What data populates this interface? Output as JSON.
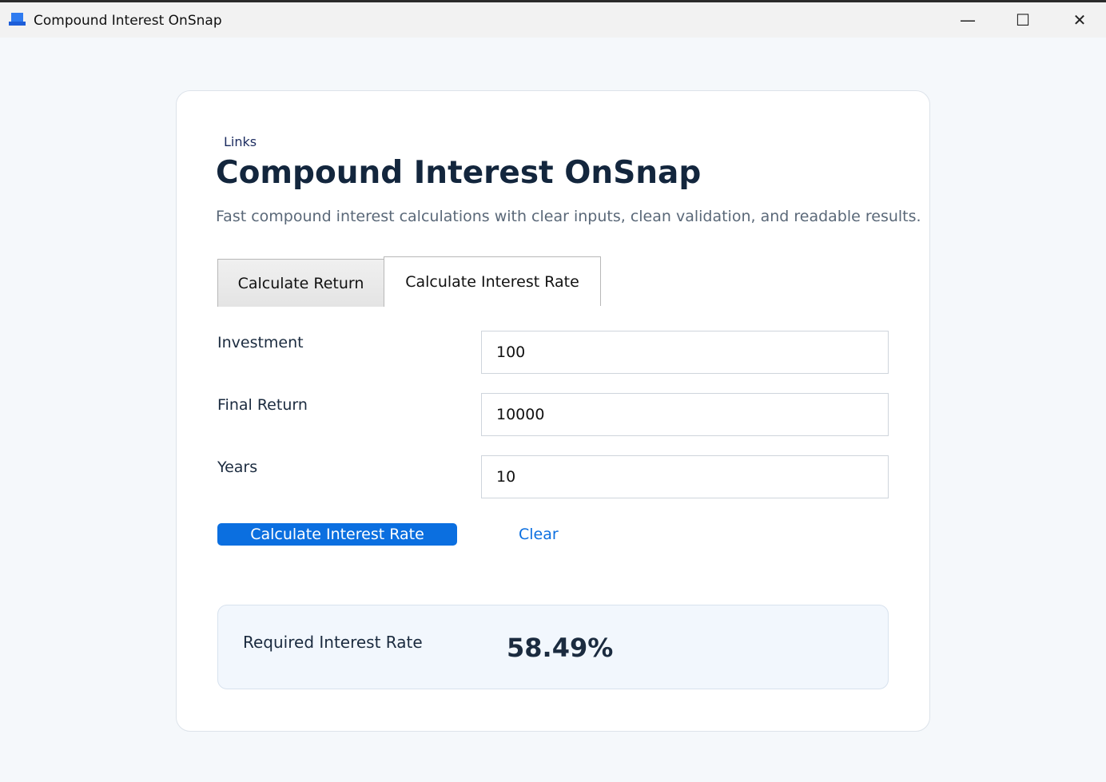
{
  "window": {
    "title": "Compound Interest OnSnap",
    "minimize": "—",
    "maximize": "☐",
    "close": "✕"
  },
  "header": {
    "links": "Links",
    "title": "Compound Interest OnSnap",
    "subtitle": "Fast compound interest calculations with clear inputs, clean validation, and readable results."
  },
  "tabs": [
    {
      "label": "Calculate Return",
      "active": false
    },
    {
      "label": "Calculate Interest Rate",
      "active": true
    }
  ],
  "form": {
    "investment": {
      "label": "Investment",
      "value": "100"
    },
    "final_return": {
      "label": "Final Return",
      "value": "10000"
    },
    "years": {
      "label": "Years",
      "value": "10"
    },
    "calculate_label": "Calculate Interest Rate",
    "clear_label": "Clear"
  },
  "result": {
    "label": "Required Interest Rate",
    "value": "58.49%"
  },
  "colors": {
    "accent": "#0b6fe0",
    "title": "#13263d"
  }
}
